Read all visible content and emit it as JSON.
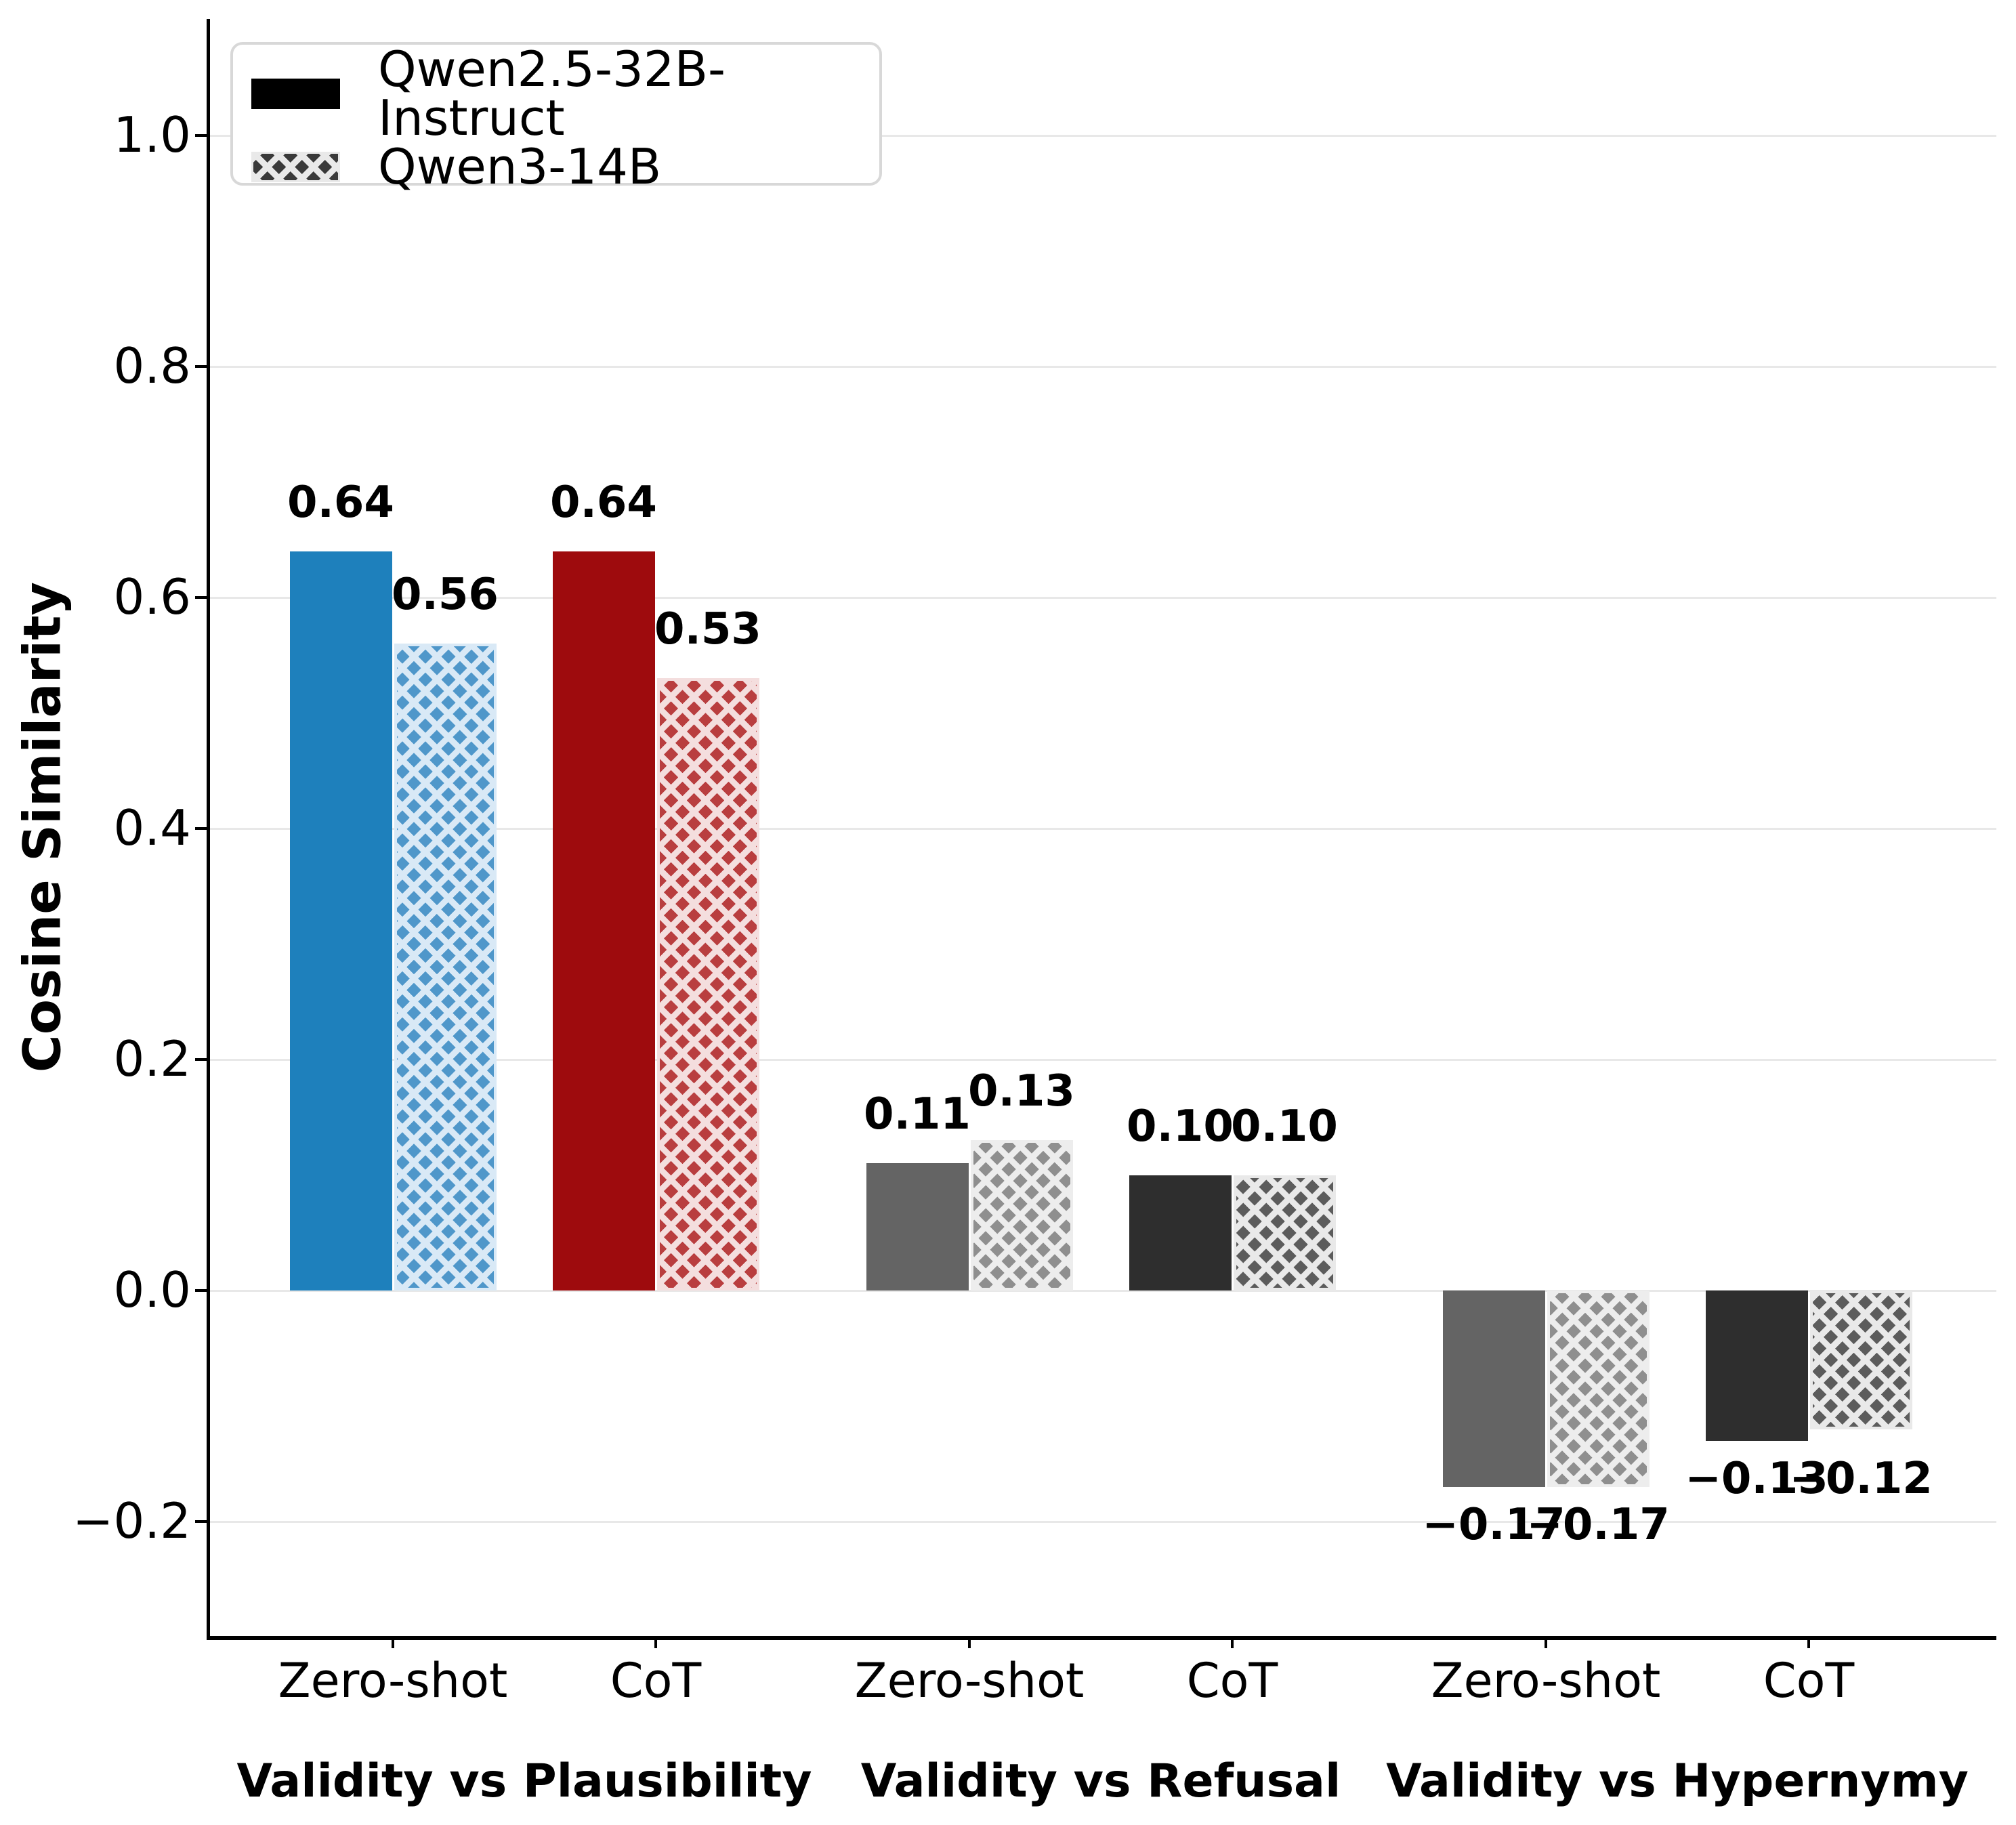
{
  "chart_data": {
    "type": "bar",
    "title": "",
    "xlabel": "",
    "ylabel": "Cosine Similarity",
    "ylim": [
      -0.3,
      1.1
    ],
    "grid": "horizontal",
    "legend_position": "upper-left",
    "yticks": [
      {
        "value": 1.0,
        "label": "1.0"
      },
      {
        "value": 0.8,
        "label": "0.8"
      },
      {
        "value": 0.6,
        "label": "0.6"
      },
      {
        "value": 0.4,
        "label": "0.4"
      },
      {
        "value": 0.2,
        "label": "0.2"
      },
      {
        "value": 0.0,
        "label": "0.0"
      },
      {
        "value": -0.2,
        "label": "−0.2"
      }
    ],
    "legend": {
      "items": [
        {
          "label": "Qwen2.5-32B-Instruct",
          "swatch": "solid",
          "color": "#000000",
          "hatch_color": ""
        },
        {
          "label": "Qwen3-14B",
          "swatch": "hatched",
          "color": "#3a3a3a",
          "hatch_color": "#e9e9e9"
        }
      ]
    },
    "series": [
      "Qwen2.5-32B-Instruct",
      "Qwen3-14B"
    ],
    "groups": [
      {
        "label": "Validity vs Plausibility",
        "clusters": [
          {
            "tick": "Zero-shot",
            "bars": [
              {
                "series": "Qwen2.5-32B-Instruct",
                "value": 0.64,
                "label": "0.64",
                "fill": "#1e80bc",
                "hatched": false,
                "hatch_color": ""
              },
              {
                "series": "Qwen3-14B",
                "value": 0.56,
                "label": "0.56",
                "fill": "#4f97ca",
                "hatched": true,
                "hatch_color": "#d9e9f6"
              }
            ]
          },
          {
            "tick": "CoT",
            "bars": [
              {
                "series": "Qwen2.5-32B-Instruct",
                "value": 0.64,
                "label": "0.64",
                "fill": "#9e0b0d",
                "hatched": false,
                "hatch_color": ""
              },
              {
                "series": "Qwen3-14B",
                "value": 0.53,
                "label": "0.53",
                "fill": "#b93e3f",
                "hatched": true,
                "hatch_color": "#f4dede"
              }
            ]
          }
        ]
      },
      {
        "label": "Validity vs Refusal",
        "clusters": [
          {
            "tick": "Zero-shot",
            "bars": [
              {
                "series": "Qwen2.5-32B-Instruct",
                "value": 0.11,
                "label": "0.11",
                "fill": "#646464",
                "hatched": false,
                "hatch_color": ""
              },
              {
                "series": "Qwen3-14B",
                "value": 0.13,
                "label": "0.13",
                "fill": "#8f8f8f",
                "hatched": true,
                "hatch_color": "#ededed"
              }
            ]
          },
          {
            "tick": "CoT",
            "bars": [
              {
                "series": "Qwen2.5-32B-Instruct",
                "value": 0.1,
                "label": "0.10",
                "fill": "#2e2e2e",
                "hatched": false,
                "hatch_color": ""
              },
              {
                "series": "Qwen3-14B",
                "value": 0.1,
                "label": "0.10",
                "fill": "#5c5c5c",
                "hatched": true,
                "hatch_color": "#e9e9e9"
              }
            ]
          }
        ]
      },
      {
        "label": "Validity vs Hypernymy",
        "clusters": [
          {
            "tick": "Zero-shot",
            "bars": [
              {
                "series": "Qwen2.5-32B-Instruct",
                "value": -0.17,
                "label": "−0.17",
                "fill": "#646464",
                "hatched": false,
                "hatch_color": ""
              },
              {
                "series": "Qwen3-14B",
                "value": -0.17,
                "label": "−0.17",
                "fill": "#8f8f8f",
                "hatched": true,
                "hatch_color": "#ededed"
              }
            ]
          },
          {
            "tick": "CoT",
            "bars": [
              {
                "series": "Qwen2.5-32B-Instruct",
                "value": -0.13,
                "label": "−0.13",
                "fill": "#2e2e2e",
                "hatched": false,
                "hatch_color": ""
              },
              {
                "series": "Qwen3-14B",
                "value": -0.12,
                "label": "−0.12",
                "fill": "#5c5c5c",
                "hatched": true,
                "hatch_color": "#e9e9e9"
              }
            ]
          }
        ]
      }
    ]
  }
}
